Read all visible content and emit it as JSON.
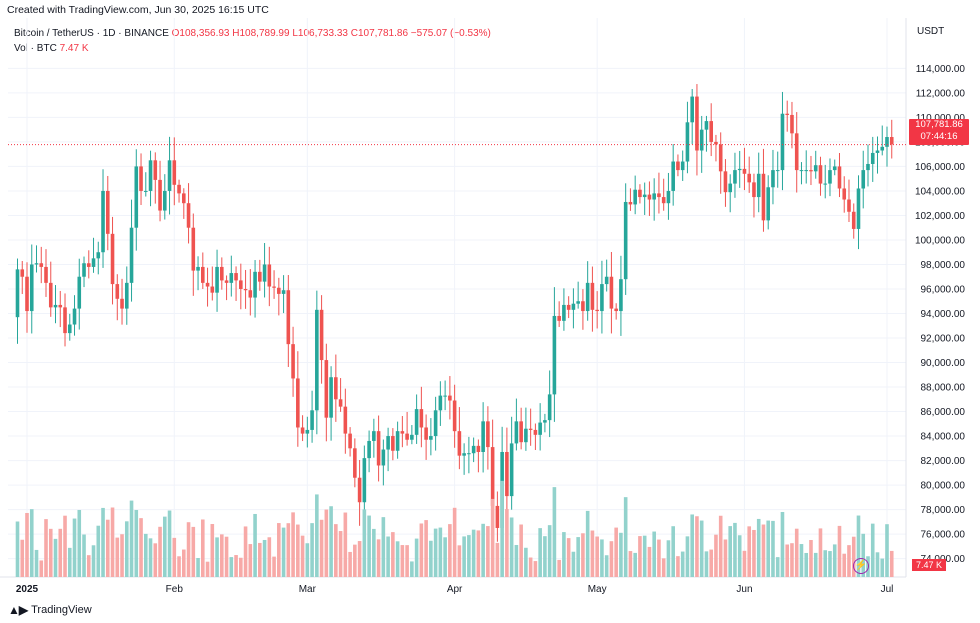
{
  "header": {
    "caption": "Created with TradingView.com, Jun 30, 2025 16:15 UTC"
  },
  "legend": {
    "symbol": "Bitcoin / TetherUS · 1D · BINANCE",
    "open": "O108,356.93",
    "high": "H108,789.99",
    "low": "L106,733.33",
    "close": "C107,781.86",
    "change": "−575.07 (−0.53%)",
    "vol_label": "Vol · BTC",
    "vol_value": "7.47 K"
  },
  "price_axis": {
    "currency": "USDT",
    "last_price": "107,781.86",
    "countdown": "07:44:16",
    "vol_tag": "7.47 K"
  },
  "footer": {
    "brand": "TradingView"
  },
  "colors": {
    "up": "#26a69a",
    "down": "#ef5350",
    "vol_up": "#92d2cc",
    "vol_down": "#f7a9a7",
    "grid": "#f0f3fa",
    "last_line": "#f23645"
  },
  "chart_data": {
    "type": "candlestick",
    "y_ticks": [
      "74,000.00",
      "76,000.00",
      "78,000.00",
      "80,000.00",
      "82,000.00",
      "84,000.00",
      "86,000.00",
      "88,000.00",
      "90,000.00",
      "92,000.00",
      "94,000.00",
      "96,000.00",
      "98,000.00",
      "100,000.00",
      "102,000.00",
      "104,000.00",
      "106,000.00",
      "108,000.00",
      "110,000.00",
      "112,000.00",
      "114,000.00"
    ],
    "y_tick_values": [
      74000,
      76000,
      78000,
      80000,
      82000,
      84000,
      86000,
      88000,
      90000,
      92000,
      94000,
      96000,
      98000,
      100000,
      102000,
      104000,
      106000,
      108000,
      110000,
      112000,
      114000
    ],
    "x_labels": [
      "2025",
      "Feb",
      "Mar",
      "Apr",
      "May",
      "Jun",
      "Jul"
    ],
    "x_label_dates": [
      "2025-01-01",
      "2025-02-01",
      "2025-03-01",
      "2025-04-01",
      "2025-05-01",
      "2025-06-01",
      "2025-07-01"
    ],
    "ylim": [
      72500,
      115500
    ],
    "xlim": [
      "2024-12-28",
      "2025-07-05"
    ],
    "closes": [
      97600,
      97000,
      94200,
      98000,
      98100,
      97800,
      96500,
      94500,
      94700,
      94500,
      92400,
      93100,
      94400,
      97000,
      98100,
      97800,
      98500,
      99000,
      104000,
      100500,
      96400,
      95200,
      94400,
      96500,
      101000,
      106000,
      104000,
      104000,
      106500,
      104900,
      102400,
      104000,
      106500,
      104500,
      103800,
      103000,
      101000,
      97500,
      97800,
      96500,
      96200,
      95700,
      97800,
      96700,
      96500,
      97300,
      96700,
      96000,
      95900,
      95300,
      97400,
      96600,
      98000,
      96200,
      96100,
      95600,
      95900,
      91500,
      88700,
      84700,
      84200,
      84500,
      86100,
      94300,
      90200,
      85500,
      88800,
      87000,
      86400,
      84200,
      83000,
      80600,
      78600,
      82200,
      83600,
      84400,
      81600,
      82900,
      84000,
      82800,
      84400,
      84200,
      83700,
      84100,
      86200,
      84700,
      83700,
      84000,
      86100,
      87300,
      87300,
      86900,
      84400,
      82400,
      82600,
      82600,
      83200,
      82700,
      85200,
      83100,
      78300,
      76500,
      82700,
      79100,
      83400,
      85200,
      83500,
      84600,
      84500,
      84100,
      85100,
      85300,
      87400,
      93800,
      93400,
      94700,
      94300,
      94800,
      95000,
      94200,
      96500,
      94300,
      94200,
      96400,
      97000,
      94400,
      94200,
      96800,
      103100,
      102900,
      104100,
      103500,
      103700,
      103300,
      103800,
      103500,
      103000,
      104000,
      106400,
      105700,
      106400,
      109600,
      111700,
      107300,
      109000,
      109700,
      108000,
      107800,
      105600,
      103900,
      104600,
      105700,
      105800,
      105400,
      104700,
      103500,
      105400,
      101600,
      104300,
      105700,
      105700,
      110300,
      110200,
      108700,
      105700,
      105700,
      105700,
      105600,
      106100,
      104600,
      104600,
      105700,
      106000,
      104200,
      103300,
      102300,
      100900,
      104200,
      105700,
      106200,
      107100,
      107300,
      107600,
      108400,
      107800
    ],
    "candle_color_legend": {
      "up": "close > open",
      "down": "close < open"
    },
    "last_close": 107781.86,
    "volume_axis_label": "Vol · BTC",
    "volume_last": "7.47 K"
  }
}
